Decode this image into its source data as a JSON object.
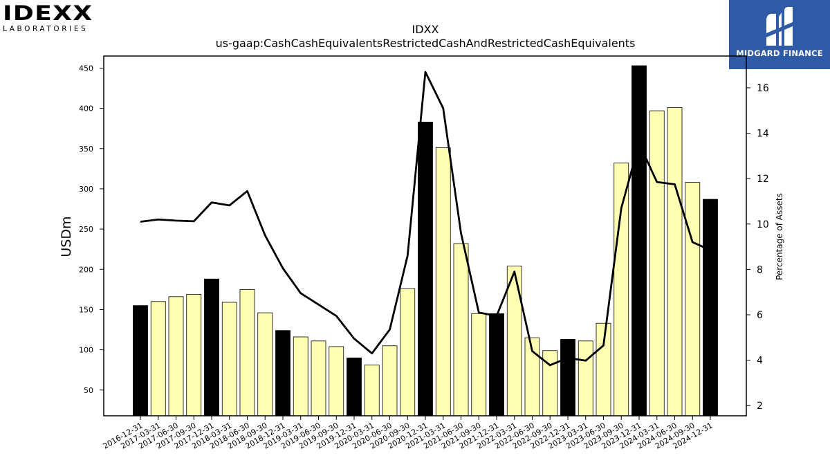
{
  "logos": {
    "left_wordmark": "IDEXX",
    "left_subtitle": "LABORATORIES",
    "right_label": "MIDGARD FINANCE"
  },
  "chart_data": {
    "type": "bar",
    "title": "IDXX",
    "subtitle": "us-gaap:CashCashEquivalentsRestrictedCashAndRestrictedCashEquivalents",
    "ylabel": "USDm",
    "y2label": "Percentage of Assets",
    "ylim": [
      18,
      465
    ],
    "y2lim": [
      1.55,
      17.4
    ],
    "yticks": [
      50,
      100,
      150,
      200,
      250,
      300,
      350,
      400,
      450
    ],
    "y2ticks": [
      2,
      4,
      6,
      8,
      10,
      12,
      14,
      16
    ],
    "categories": [
      "2016-12-31",
      "2017-03-31",
      "2017-06-30",
      "2017-09-30",
      "2017-12-31",
      "2018-03-31",
      "2018-06-30",
      "2018-09-30",
      "2018-12-31",
      "2019-03-31",
      "2019-06-30",
      "2019-09-30",
      "2019-12-31",
      "2020-03-31",
      "2020-06-30",
      "2020-09-30",
      "2020-12-31",
      "2021-03-31",
      "2021-06-30",
      "2021-09-30",
      "2021-12-31",
      "2022-03-31",
      "2022-06-30",
      "2022-09-30",
      "2022-12-31",
      "2023-03-31",
      "2023-06-30",
      "2023-09-30",
      "2023-12-31",
      "2024-03-31",
      "2024-06-30",
      "2024-09-30",
      "2024-12-31"
    ],
    "series": [
      {
        "kind": "bar",
        "values": [
          155,
          160,
          166,
          169,
          188,
          159,
          175,
          146,
          124,
          116,
          111,
          104,
          90,
          81,
          105,
          176,
          383,
          351,
          232,
          145,
          145,
          204,
          115,
          99,
          113,
          111,
          133,
          332,
          453,
          397,
          401,
          308,
          287
        ]
      },
      {
        "kind": "line",
        "axis": "right",
        "values": [
          10.1,
          10.2,
          10.15,
          10.12,
          10.95,
          10.82,
          11.45,
          9.5,
          8.05,
          6.95,
          6.45,
          5.95,
          4.95,
          4.3,
          5.35,
          8.6,
          16.7,
          15.1,
          9.6,
          6.1,
          5.95,
          7.9,
          4.4,
          3.78,
          4.1,
          3.98,
          4.65,
          10.7,
          13.55,
          11.85,
          11.75,
          9.2,
          8.85
        ]
      }
    ],
    "colors": {
      "bar_highlight": "#000000",
      "bar_normal": "#ffffb3",
      "line": "#000000"
    }
  }
}
